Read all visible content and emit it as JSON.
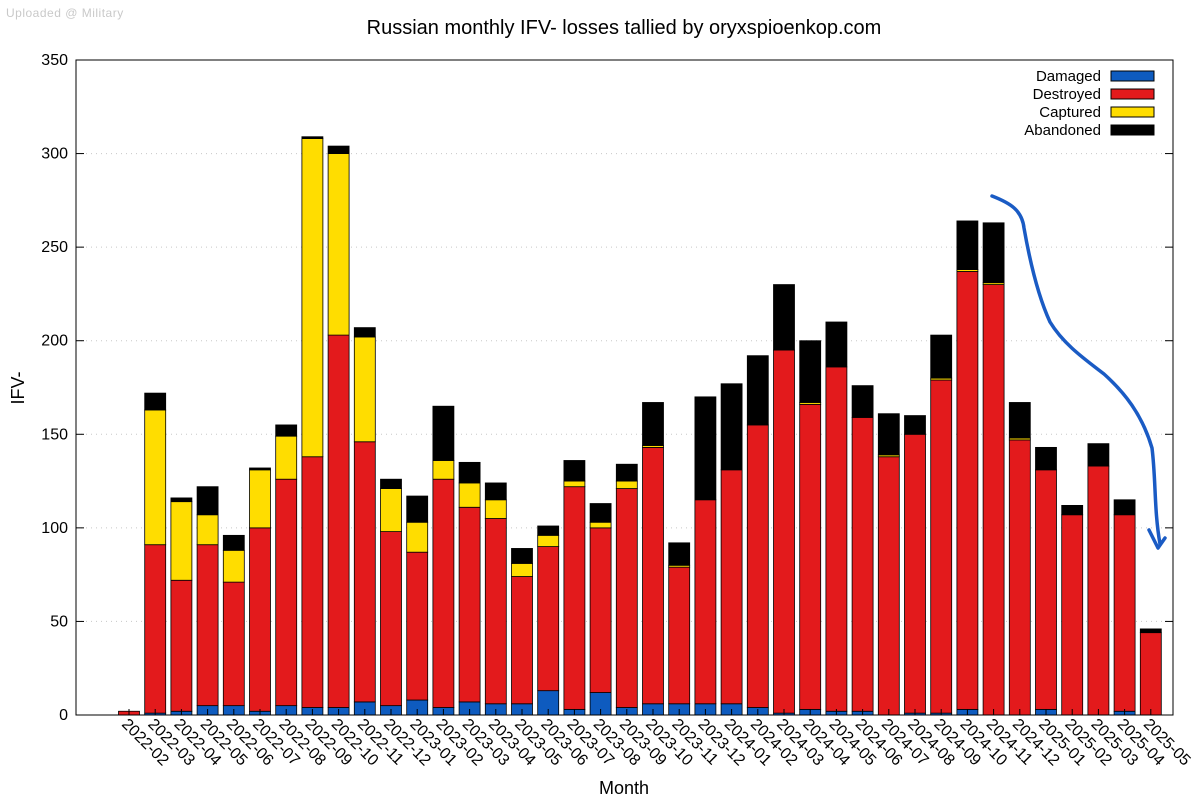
{
  "watermark": "Uploaded @ Military",
  "chart_data": {
    "type": "bar",
    "stacked": true,
    "title": "Russian monthly IFV- losses tallied by oryxspioenkop.com",
    "xlabel": "Month",
    "ylabel": "IFV-",
    "ylim": [
      0,
      350
    ],
    "yticks": [
      0,
      50,
      100,
      150,
      200,
      250,
      300,
      350
    ],
    "grid": true,
    "legend_position": "top-right",
    "categories": [
      "2022-02",
      "2022-03",
      "2022-04",
      "2022-05",
      "2022-06",
      "2022-07",
      "2022-08",
      "2022-09",
      "2022-10",
      "2022-11",
      "2022-12",
      "2023-01",
      "2023-02",
      "2023-03",
      "2023-04",
      "2023-05",
      "2023-06",
      "2023-07",
      "2023-08",
      "2023-09",
      "2023-10",
      "2023-11",
      "2023-12",
      "2024-01",
      "2024-02",
      "2024-03",
      "2024-04",
      "2024-05",
      "2024-06",
      "2024-07",
      "2024-08",
      "2024-09",
      "2024-10",
      "2024-11",
      "2024-12",
      "2025-01",
      "2025-02",
      "2025-03",
      "2025-04",
      "2025-05"
    ],
    "series": [
      {
        "name": "Damaged",
        "color": "#0e5bbf",
        "values": [
          0,
          1,
          2,
          5,
          5,
          2,
          5,
          4,
          4,
          7,
          5,
          8,
          4,
          7,
          6,
          6,
          13,
          3,
          12,
          4,
          6,
          6,
          6,
          6,
          4,
          1,
          3,
          2,
          2,
          0,
          1,
          1,
          3,
          0,
          0,
          3,
          0,
          0,
          2,
          0
        ]
      },
      {
        "name": "Destroyed",
        "color": "#e31a1c",
        "values": [
          2,
          90,
          70,
          86,
          66,
          98,
          121,
          134,
          199,
          139,
          93,
          79,
          122,
          104,
          99,
          68,
          77,
          119,
          88,
          117,
          137,
          73,
          109,
          125,
          151,
          194,
          163,
          184,
          157,
          138,
          149,
          178,
          234,
          230,
          147,
          128,
          107,
          133,
          105,
          44
        ]
      },
      {
        "name": "Captured",
        "color": "#ffdd00",
        "values": [
          0,
          72,
          42,
          16,
          17,
          31,
          23,
          170,
          97,
          56,
          23,
          16,
          10,
          13,
          10,
          7,
          6,
          3,
          3,
          4,
          1,
          1,
          0,
          0,
          0,
          0,
          1,
          0,
          0,
          1,
          0,
          1,
          1,
          1,
          1,
          0,
          0,
          0,
          0,
          0
        ]
      },
      {
        "name": "Abandoned",
        "color": "#000000",
        "values": [
          0,
          9,
          2,
          15,
          8,
          1,
          6,
          1,
          4,
          5,
          5,
          14,
          29,
          11,
          9,
          8,
          5,
          11,
          10,
          9,
          23,
          12,
          55,
          46,
          37,
          35,
          33,
          24,
          17,
          22,
          10,
          23,
          26,
          32,
          19,
          12,
          5,
          12,
          8,
          2
        ]
      }
    ]
  }
}
